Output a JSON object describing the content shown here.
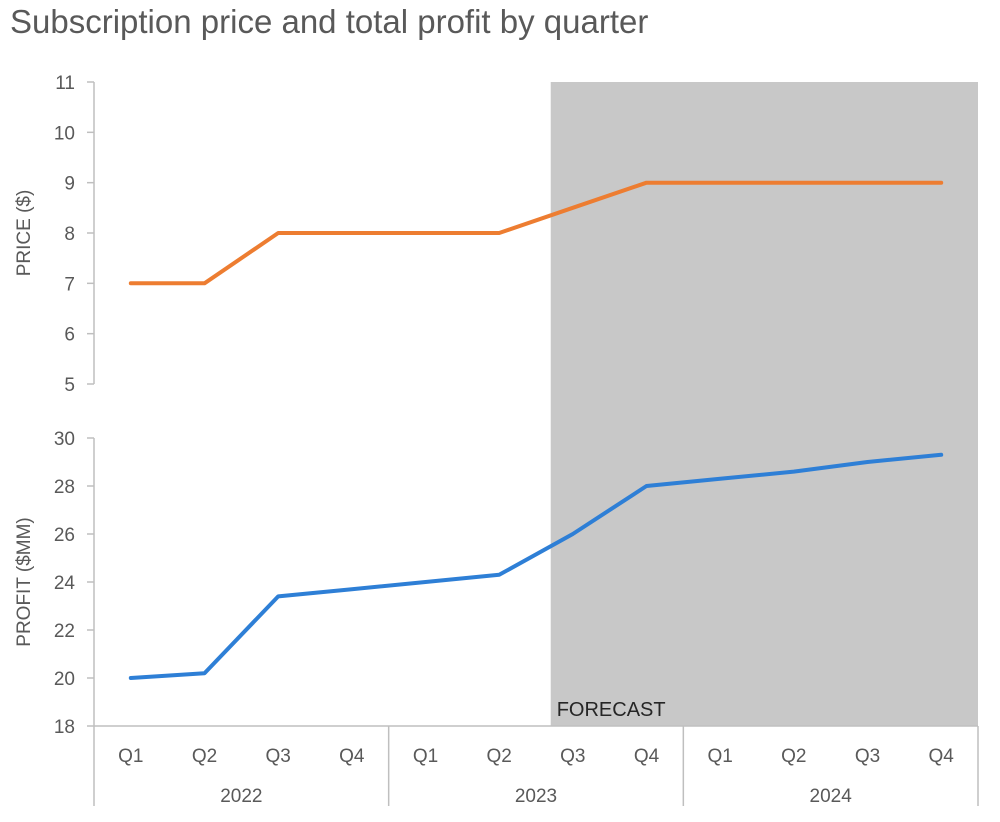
{
  "chart_data": {
    "type": "line",
    "title": "Subscription price and total profit by quarter",
    "quarters": [
      "Q1",
      "Q2",
      "Q3",
      "Q4",
      "Q1",
      "Q2",
      "Q3",
      "Q4",
      "Q1",
      "Q2",
      "Q3",
      "Q4"
    ],
    "years": [
      "2022",
      "2023",
      "2024"
    ],
    "colors": {
      "price": "#ED7D31",
      "profit": "#2E7FD6",
      "forecast_band": "#C8C8C8",
      "axis": "#BFBFBF",
      "text": "#595959"
    },
    "forecast": {
      "label": "FORECAST",
      "start_x": 6.2,
      "end_x": 12
    },
    "panels": [
      {
        "id": "price",
        "ylabel": "PRICE ($)",
        "ylim": [
          5,
          11
        ],
        "yticks": [
          5,
          6,
          7,
          8,
          9,
          10,
          11
        ],
        "series": [
          {
            "key": "price",
            "values": [
              7,
              7,
              8,
              8,
              8,
              8,
              8.5,
              9,
              9,
              9,
              9,
              9
            ]
          }
        ]
      },
      {
        "id": "profit",
        "ylabel": "PROFIT ($MM)",
        "ylim": [
          18,
          30
        ],
        "yticks": [
          18,
          20,
          22,
          24,
          26,
          28,
          30
        ],
        "series": [
          {
            "key": "profit",
            "values": [
              20,
              20.2,
              23.4,
              23.7,
              24,
              24.3,
              26,
              28,
              28.3,
              28.6,
              29,
              29.3
            ]
          }
        ]
      }
    ]
  }
}
